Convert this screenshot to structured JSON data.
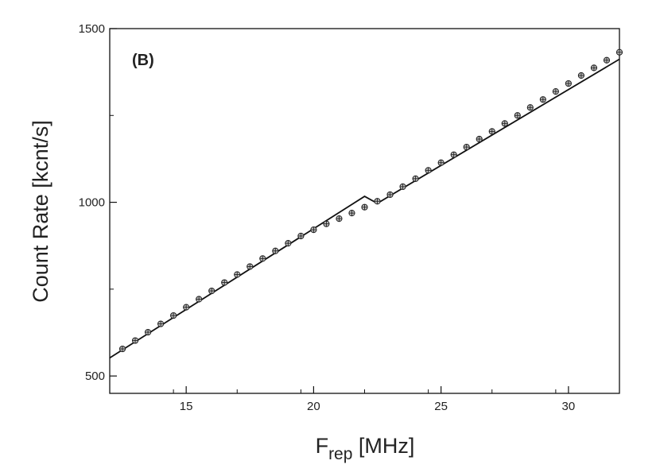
{
  "chart_data": {
    "type": "scatter",
    "panel_label": "(B)",
    "xlabel_main": "F",
    "xlabel_sub": "rep",
    "xlabel_unit": " [MHz]",
    "ylabel": "Count Rate [kcnt/s]",
    "xlim": [
      12,
      32
    ],
    "ylim": [
      450,
      1500
    ],
    "x_ticks": [
      15,
      20,
      25,
      30
    ],
    "y_ticks": [
      500,
      1000,
      1500
    ],
    "x_tick_labels": [
      "15",
      "20",
      "25",
      "30"
    ],
    "y_tick_labels": [
      "500",
      "1000",
      "1500"
    ],
    "grid": false,
    "series": [
      {
        "kind": "points",
        "marker": "crossed-circle",
        "x": [
          12.5,
          13.0,
          13.5,
          14.0,
          14.5,
          15.0,
          15.5,
          16.0,
          16.5,
          17.0,
          17.5,
          18.0,
          18.5,
          19.0,
          19.5,
          20.0,
          20.5,
          21.0,
          21.5,
          22.0,
          22.5,
          23.0,
          23.5,
          24.0,
          24.5,
          25.0,
          25.5,
          26.0,
          26.5,
          27.0,
          27.5,
          28.0,
          28.5,
          29.0,
          29.5,
          30.0,
          30.5,
          31.0,
          31.5,
          32.0
        ],
        "y": [
          578,
          602,
          626,
          650,
          674,
          698,
          721,
          745,
          769,
          792,
          815,
          838,
          860,
          882,
          903,
          921,
          938,
          953,
          969,
          986,
          1003,
          1022,
          1045,
          1068,
          1092,
          1114,
          1137,
          1159,
          1182,
          1204,
          1227,
          1250,
          1273,
          1296,
          1319,
          1342,
          1365,
          1387,
          1409,
          1432
        ]
      },
      {
        "kind": "line",
        "x": [
          12.0,
          22.0,
          22.5,
          32.0
        ],
        "y": [
          552,
          1017,
          997,
          1412
        ]
      }
    ]
  }
}
